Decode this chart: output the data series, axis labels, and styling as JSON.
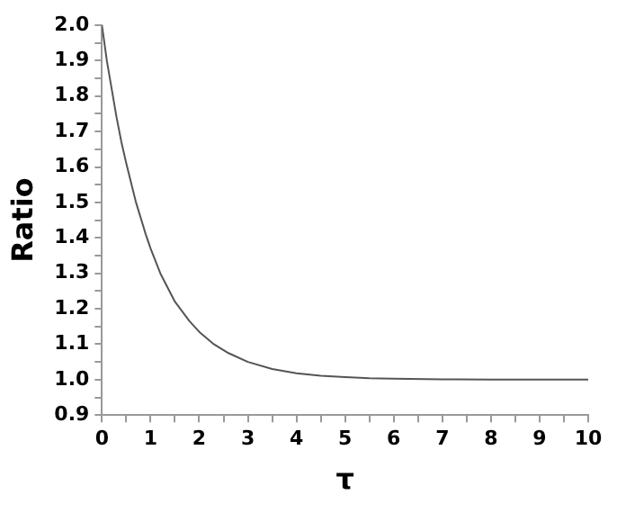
{
  "chart_data": {
    "type": "line",
    "xlabel": "τ",
    "ylabel": "Ratio",
    "x": [
      0,
      0.1,
      0.2,
      0.3,
      0.4,
      0.5,
      0.7,
      0.9,
      1.0,
      1.2,
      1.5,
      1.8,
      2.0,
      2.3,
      2.6,
      3.0,
      3.5,
      4.0,
      4.5,
      5.0,
      5.5,
      6.0,
      7.0,
      8.0,
      9.0,
      10.0
    ],
    "series": [
      {
        "color": "#555555",
        "values": [
          2.0,
          1.9,
          1.82,
          1.74,
          1.67,
          1.61,
          1.5,
          1.41,
          1.37,
          1.3,
          1.22,
          1.165,
          1.135,
          1.1,
          1.075,
          1.05,
          1.03,
          1.018,
          1.011,
          1.007,
          1.004,
          1.003,
          1.001,
          1.0,
          1.0,
          1.0
        ]
      }
    ],
    "xlim": [
      0,
      10
    ],
    "ylim": [
      0.9,
      2.0
    ],
    "xticks": [
      0,
      {
        "value": 0.5,
        "label": null
      },
      1,
      {
        "value": 1.5,
        "label": null
      },
      2,
      {
        "value": 2.5,
        "label": null
      },
      3,
      {
        "value": 3.5,
        "label": null
      },
      4,
      {
        "value": 4.5,
        "label": null
      },
      5,
      {
        "value": 5.5,
        "label": null
      },
      6,
      {
        "value": 6.5,
        "label": null
      },
      7,
      {
        "value": 7.5,
        "label": null
      },
      8,
      {
        "value": 8.5,
        "label": null
      },
      9,
      {
        "value": 9.5,
        "label": null
      },
      10
    ],
    "yticks": [
      0.9,
      {
        "value": 0.95,
        "label": null
      },
      {
        "value": 1.0,
        "label": "1.0"
      },
      {
        "value": 1.05,
        "label": null
      },
      1.1,
      {
        "value": 1.15,
        "label": null
      },
      1.2,
      {
        "value": 1.25,
        "label": null
      },
      1.3,
      {
        "value": 1.35,
        "label": null
      },
      1.4,
      {
        "value": 1.45,
        "label": null
      },
      1.5,
      {
        "value": 1.55,
        "label": null
      },
      1.6,
      {
        "value": 1.65,
        "label": null
      },
      1.7,
      {
        "value": 1.75,
        "label": null
      },
      1.8,
      {
        "value": 1.85,
        "label": null
      },
      1.9,
      {
        "value": 1.95,
        "label": null
      },
      {
        "value": 2.0,
        "label": "2.0"
      }
    ],
    "marker": "none",
    "line_style": "solid",
    "grid": false,
    "legend": false
  }
}
